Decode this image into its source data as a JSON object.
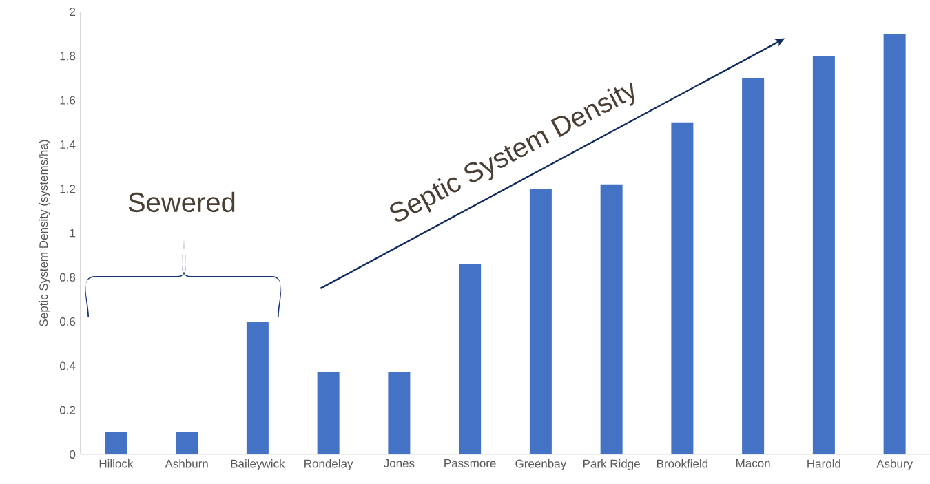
{
  "chart_data": {
    "type": "bar",
    "ylabel": "Septic System Density (systems/ha)",
    "categories": [
      "Hillock",
      "Ashburn",
      "Baileywick",
      "Rondelay",
      "Jones",
      "Passmore",
      "Greenbay",
      "Park Ridge",
      "Brookfield",
      "Macon",
      "Harold",
      "Asbury"
    ],
    "values": [
      0.1,
      0.1,
      0.6,
      0.37,
      0.37,
      0.86,
      1.2,
      1.22,
      1.5,
      1.7,
      1.8,
      1.9
    ],
    "color": "#4472c4",
    "ylim": [
      0,
      2
    ],
    "yticks": [
      0,
      0.2,
      0.4,
      0.6,
      0.8,
      1,
      1.2,
      1.4,
      1.6,
      1.8,
      2
    ],
    "annotations": [
      "Sewered",
      "Septic System Density"
    ]
  }
}
